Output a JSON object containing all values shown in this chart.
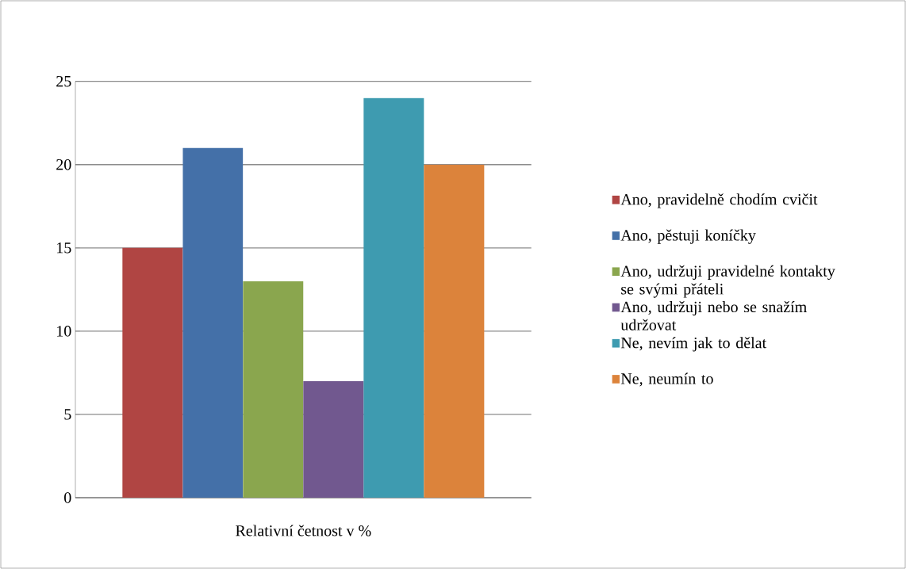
{
  "chart_data": {
    "type": "bar",
    "categories": [
      "Relativní četnost v %"
    ],
    "series": [
      {
        "name": "Ano, pravidelně chodím cvičit",
        "color": "#b04543",
        "values": [
          15
        ]
      },
      {
        "name": "Ano, pěstuji koníčky",
        "color": "#4470a8",
        "values": [
          21
        ]
      },
      {
        "name": "Ano, udržuji pravidelné kontakty se svými přáteli",
        "color": "#8aa64e",
        "values": [
          13
        ]
      },
      {
        "name": "Ano, udržuji nebo se snažím udržovat",
        "color": "#71588f",
        "values": [
          7
        ]
      },
      {
        "name": "Ne, nevím jak to dělat",
        "color": "#3e9bb0",
        "values": [
          24
        ]
      },
      {
        "name": "Ne, neumín to",
        "color": "#dc833b",
        "values": [
          20
        ]
      }
    ],
    "ylim": [
      0,
      25
    ],
    "yticks": [
      0,
      5,
      10,
      15,
      20,
      25
    ],
    "grid": "y",
    "legend": "right"
  }
}
